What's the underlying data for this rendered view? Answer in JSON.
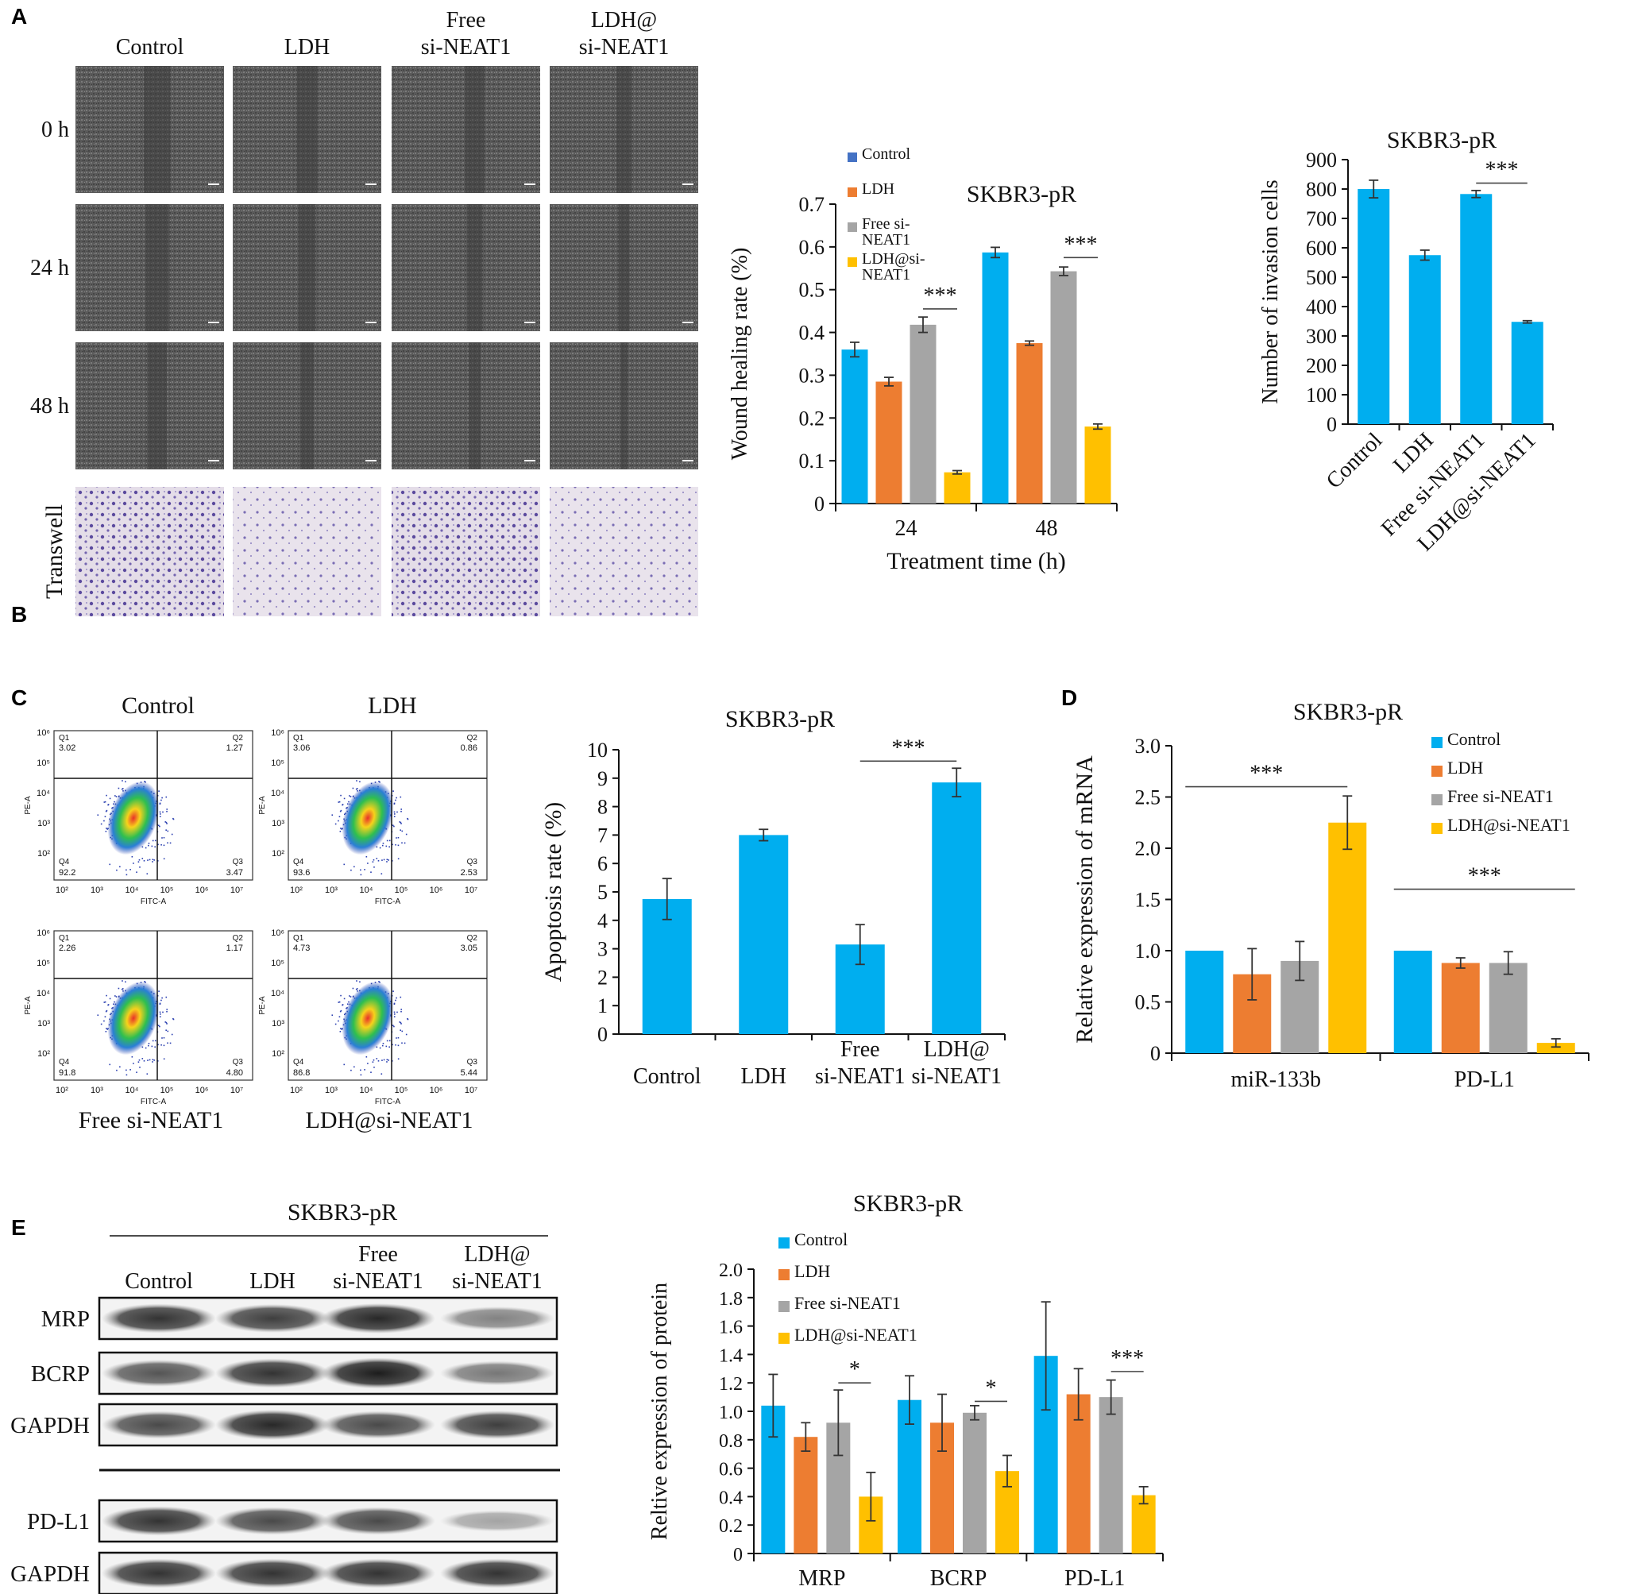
{
  "colors": {
    "control": "#00AEEF",
    "ldh": "#ED7D31",
    "free": "#A5A5A5",
    "ldh_si": "#FFC000",
    "control_legend_a": "#4472C4"
  },
  "panel_letters": {
    "A": "A",
    "B": "B",
    "C": "C",
    "D": "D",
    "E": "E"
  },
  "panel_a": {
    "column_labels": [
      {
        "line1": "Control",
        "line2": ""
      },
      {
        "line1": "LDH",
        "line2": ""
      },
      {
        "line1": "Free",
        "line2": "si-NEAT1"
      },
      {
        "line1": "LDH@",
        "line2": "si-NEAT1"
      }
    ],
    "row_labels": [
      "0 h",
      "24 h",
      "48 h"
    ],
    "transwell_label": "Transwell"
  },
  "panel_c_flow": {
    "top_titles": [
      "Control",
      "LDH"
    ],
    "bottom_titles": [
      "Free si-NEAT1",
      "LDH@si-NEAT1"
    ],
    "plots": [
      {
        "q1": "3.02",
        "q2": "1.27",
        "q3": "3.47",
        "q4": "92.2"
      },
      {
        "q1": "3.06",
        "q2": "0.86",
        "q3": "2.53",
        "q4": "93.6"
      },
      {
        "q1": "2.26",
        "q2": "1.17",
        "q3": "4.80",
        "q4": "91.8"
      },
      {
        "q1": "4.73",
        "q2": "3.05",
        "q3": "5.44",
        "q4": "86.8"
      }
    ],
    "quad_labels": {
      "q1": "Q1",
      "q2": "Q2",
      "q3": "Q3",
      "q4": "Q4"
    },
    "axis_x": "FITC-A",
    "axis_y": "PE-A",
    "ticks": [
      "10²",
      "10³",
      "10⁴",
      "10⁵",
      "10⁶",
      "10⁷"
    ],
    "yticks": [
      "10²",
      "10³",
      "10⁴",
      "10⁵",
      "10⁶"
    ]
  },
  "panel_e_blot": {
    "header": "SKBR3-pR",
    "columns": [
      {
        "line1": "Control",
        "line2": ""
      },
      {
        "line1": "LDH",
        "line2": ""
      },
      {
        "line1": "Free",
        "line2": "si-NEAT1"
      },
      {
        "line1": "LDH@",
        "line2": "si-NEAT1"
      }
    ],
    "rows": [
      "MRP",
      "BCRP",
      "GAPDH",
      "PD-L1",
      "GAPDH"
    ],
    "intensity": [
      [
        0.85,
        0.8,
        0.9,
        0.5
      ],
      [
        0.7,
        0.85,
        0.95,
        0.55
      ],
      [
        0.75,
        0.9,
        0.75,
        0.8
      ],
      [
        0.85,
        0.75,
        0.75,
        0.35
      ],
      [
        0.85,
        0.85,
        0.85,
        0.85
      ]
    ]
  },
  "chart_data": [
    {
      "id": "wound",
      "type": "bar",
      "title": "SKBR3-pR",
      "xlabel": "Treatment time (h)",
      "ylabel": "Wound healing rate (%)",
      "ylim": [
        0,
        0.7
      ],
      "yticks": [
        "0",
        "0.1",
        "0.2",
        "0.3",
        "0.4",
        "0.5",
        "0.6",
        "0.7"
      ],
      "categories": [
        "24",
        "48"
      ],
      "legend": [
        "Control",
        "LDH",
        "Free si-\nNEAT1",
        "LDH@si-\nNEAT1"
      ],
      "series": [
        {
          "name": "Control",
          "values": [
            0.36,
            0.587
          ],
          "errors": [
            0.017,
            0.012
          ]
        },
        {
          "name": "LDH",
          "values": [
            0.285,
            0.375
          ],
          "errors": [
            0.01,
            0.005
          ]
        },
        {
          "name": "Free si-NEAT1",
          "values": [
            0.418,
            0.543
          ],
          "errors": [
            0.018,
            0.01
          ]
        },
        {
          "name": "LDH@si-NEAT1",
          "values": [
            0.073,
            0.18
          ],
          "errors": [
            0.004,
            0.006
          ]
        }
      ],
      "significance": [
        "***",
        "***"
      ]
    },
    {
      "id": "invasion",
      "type": "bar",
      "title": "SKBR3-pR",
      "xlabel": "",
      "ylabel": "Number of invasion cells",
      "ylim": [
        0,
        900
      ],
      "yticks": [
        "0",
        "100",
        "200",
        "300",
        "400",
        "500",
        "600",
        "700",
        "800",
        "900"
      ],
      "categories": [
        "Control",
        "LDH",
        "Free si-NEAT1",
        "LDH@si-NEAT1"
      ],
      "values": [
        800,
        575,
        783,
        348
      ],
      "errors": [
        30,
        17,
        12,
        4
      ],
      "significance": [
        "***"
      ]
    },
    {
      "id": "apoptosis",
      "type": "bar",
      "title": "SKBR3-pR",
      "xlabel": "",
      "ylabel": "Apoptosis rate (%)",
      "ylim": [
        0,
        10
      ],
      "yticks": [
        "0",
        "1",
        "2",
        "3",
        "4",
        "5",
        "6",
        "7",
        "8",
        "9",
        "10"
      ],
      "categories": [
        "Control",
        "LDH",
        "Free\nsi-NEAT1",
        "LDH@\nsi-NEAT1"
      ],
      "values": [
        4.75,
        7.0,
        3.15,
        8.85
      ],
      "errors": [
        0.72,
        0.2,
        0.7,
        0.5
      ],
      "significance": [
        "***"
      ]
    },
    {
      "id": "mrna",
      "type": "bar",
      "title": "SKBR3-pR",
      "xlabel": "",
      "ylabel": "Relative expression of mRNA",
      "ylim": [
        0,
        3.0
      ],
      "yticks": [
        "0",
        "0.5",
        "1.0",
        "1.5",
        "2.0",
        "2.5",
        "3.0"
      ],
      "categories": [
        "miR-133b",
        "PD-L1"
      ],
      "legend": [
        "Control",
        "LDH",
        "Free si-NEAT1",
        "LDH@si-NEAT1"
      ],
      "series": [
        {
          "name": "Control",
          "values": [
            1.0,
            1.0
          ],
          "errors": [
            0,
            0
          ]
        },
        {
          "name": "LDH",
          "values": [
            0.77,
            0.88
          ],
          "errors": [
            0.25,
            0.05
          ]
        },
        {
          "name": "Free si-NEAT1",
          "values": [
            0.9,
            0.88
          ],
          "errors": [
            0.19,
            0.11
          ]
        },
        {
          "name": "LDH@si-NEAT1",
          "values": [
            2.25,
            0.1
          ],
          "errors": [
            0.26,
            0.04
          ]
        }
      ],
      "significance": [
        "***",
        "***"
      ]
    },
    {
      "id": "protein",
      "type": "bar",
      "title": "SKBR3-pR",
      "xlabel": "",
      "ylabel": "Reltive expression of protein",
      "ylim": [
        0,
        2.0
      ],
      "yticks": [
        "0",
        "0.2",
        "0.4",
        "0.6",
        "0.8",
        "1.0",
        "1.2",
        "1.4",
        "1.6",
        "1.8",
        "2.0"
      ],
      "categories": [
        "MRP",
        "BCRP",
        "PD-L1"
      ],
      "legend": [
        "Control",
        "LDH",
        "Free si-NEAT1",
        "LDH@si-NEAT1"
      ],
      "series": [
        {
          "name": "Control",
          "values": [
            1.04,
            1.08,
            1.39
          ],
          "errors": [
            0.22,
            0.17,
            0.38
          ]
        },
        {
          "name": "LDH",
          "values": [
            0.82,
            0.92,
            1.12
          ],
          "errors": [
            0.1,
            0.2,
            0.18
          ]
        },
        {
          "name": "Free si-NEAT1",
          "values": [
            0.92,
            0.99,
            1.1
          ],
          "errors": [
            0.23,
            0.05,
            0.12
          ]
        },
        {
          "name": "LDH@si-NEAT1",
          "values": [
            0.4,
            0.58,
            0.41
          ],
          "errors": [
            0.17,
            0.11,
            0.06
          ]
        }
      ],
      "significance": [
        "*",
        "*",
        "***"
      ]
    }
  ]
}
